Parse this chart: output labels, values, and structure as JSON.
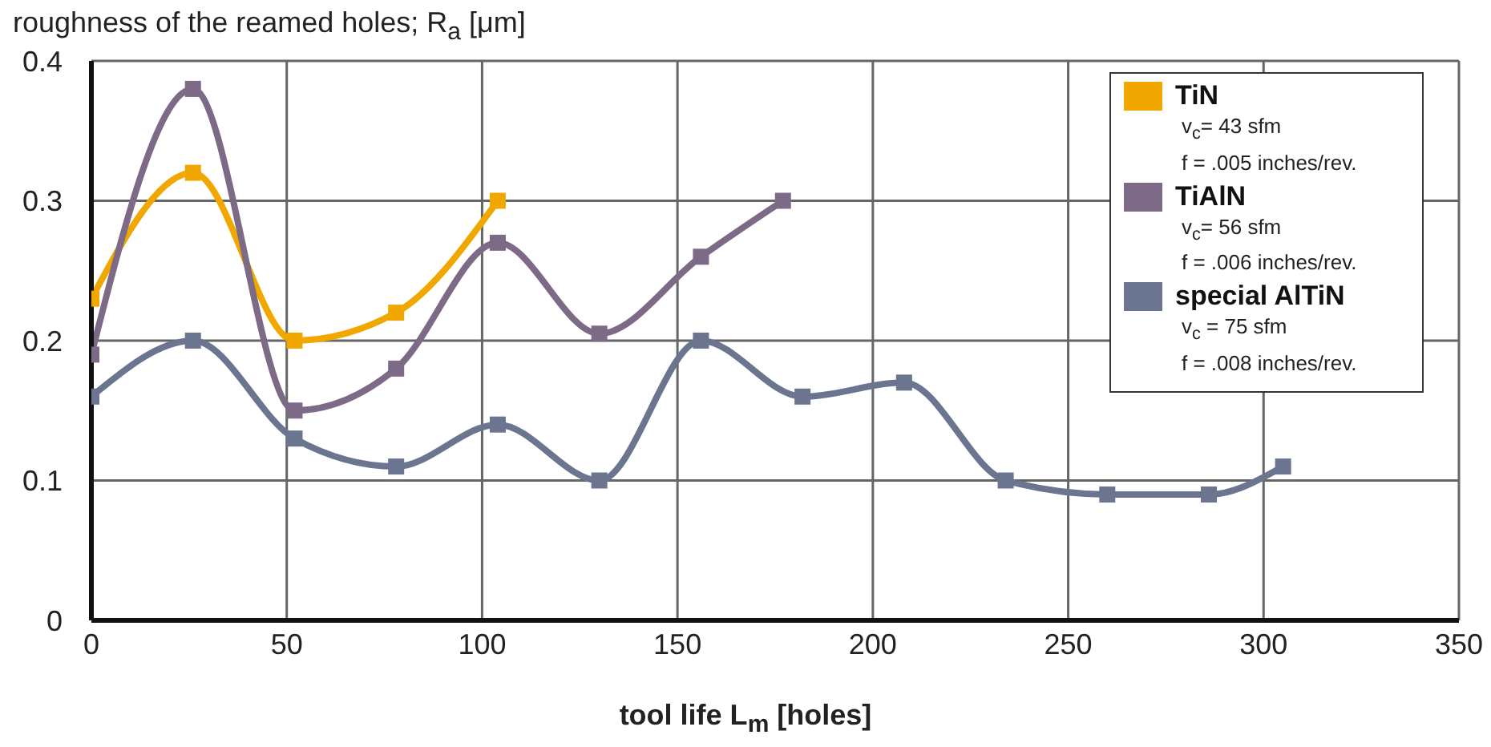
{
  "chart_data": {
    "type": "line",
    "ylabel": "roughness of the reamed holes; R$_{a}$ [μm]",
    "xlabel": "tool life L$_{m}$ [holes]",
    "xlim": [
      0,
      350
    ],
    "xticks": [
      0,
      50,
      100,
      150,
      200,
      250,
      300,
      350
    ],
    "ylim": [
      0,
      0.4
    ],
    "yticks": [
      0,
      0.1,
      0.2,
      0.3,
      0.4
    ],
    "grid": true,
    "legend": "top right",
    "marker": "square",
    "line_style": "solid",
    "series": [
      {
        "name": "TiN",
        "color": "#f0a800",
        "x": [
          0,
          26,
          52,
          78,
          104
        ],
        "values": [
          0.23,
          0.32,
          0.2,
          0.22,
          0.3
        ]
      },
      {
        "name": "TiAlN",
        "color": "#7d6a86",
        "x": [
          0,
          26,
          52,
          78,
          104,
          130,
          156,
          177
        ],
        "values": [
          0.19,
          0.38,
          0.15,
          0.18,
          0.27,
          0.205,
          0.26,
          0.3
        ]
      },
      {
        "name": "special AlTiN",
        "color": "#6b7590",
        "x": [
          0,
          26,
          52,
          78,
          104,
          130,
          156,
          182,
          208,
          234,
          260,
          286,
          305
        ],
        "values": [
          0.16,
          0.2,
          0.13,
          0.11,
          0.14,
          0.1,
          0.2,
          0.16,
          0.17,
          0.1,
          0.09,
          0.09,
          0.11
        ]
      }
    ],
    "annotations": [
      "v$_{c}$=  43 sfm",
      "f = .005 inches/rev.",
      "v$_{c}$=  56 sfm",
      "f = .006 inches/rev.",
      "v$_{c}$ = 75 sfm",
      "f = .008 inches/rev."
    ]
  }
}
